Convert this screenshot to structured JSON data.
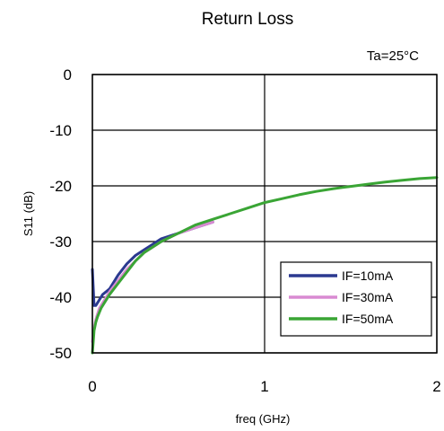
{
  "chart_data": {
    "type": "line",
    "title": "Return Loss",
    "annotation": "Ta=25°C",
    "xlabel": "freq (GHz)",
    "ylabel": "S11 (dB)",
    "xlim": [
      0,
      2
    ],
    "ylim": [
      -50,
      0
    ],
    "xticks": [
      "0",
      "1",
      "2"
    ],
    "yticks": [
      "0",
      "-10",
      "-20",
      "-30",
      "-40",
      "-50"
    ],
    "grid": true,
    "legend_position": "bottom-right",
    "series": [
      {
        "name": "IF=10mA",
        "color": "#2b3990",
        "x": [
          0.0,
          0.01,
          0.02,
          0.04,
          0.06,
          0.08,
          0.1,
          0.12,
          0.15,
          0.2,
          0.25,
          0.3,
          0.35,
          0.4,
          0.5,
          0.6,
          0.7
        ],
        "y": [
          -35,
          -41.5,
          -41.5,
          -40.5,
          -39.5,
          -39,
          -38.5,
          -37.5,
          -36,
          -34,
          -32.5,
          -31.5,
          -30.5,
          -29.5,
          -28.5,
          -27.5,
          -26.5
        ]
      },
      {
        "name": "IF=30mA",
        "color": "#d98ad2",
        "x": [
          0.0,
          0.01,
          0.02,
          0.04,
          0.06,
          0.08,
          0.1,
          0.15,
          0.2,
          0.25,
          0.3,
          0.35,
          0.4,
          0.5,
          0.6,
          0.7
        ],
        "y": [
          -48,
          -45.5,
          -44,
          -42,
          -41,
          -40,
          -39,
          -37,
          -35,
          -33.5,
          -32,
          -31,
          -30,
          -28.5,
          -27.5,
          -26.5
        ]
      },
      {
        "name": "IF=50mA",
        "color": "#3aa535",
        "x": [
          0.0,
          0.005,
          0.01,
          0.02,
          0.03,
          0.05,
          0.07,
          0.1,
          0.15,
          0.2,
          0.25,
          0.3,
          0.4,
          0.5,
          0.6,
          0.7,
          0.8,
          0.9,
          1.0,
          1.1,
          1.2,
          1.3,
          1.4,
          1.5,
          1.6,
          1.7,
          1.8,
          1.9,
          2.0
        ],
        "y": [
          -50,
          -48,
          -46,
          -44.5,
          -43.5,
          -42,
          -41,
          -39.5,
          -37.5,
          -35.5,
          -33.5,
          -32,
          -30,
          -28.5,
          -27,
          -26,
          -25,
          -24,
          -23,
          -22.3,
          -21.6,
          -21,
          -20.5,
          -20.1,
          -19.7,
          -19.3,
          -19,
          -18.7,
          -18.5
        ]
      }
    ]
  }
}
